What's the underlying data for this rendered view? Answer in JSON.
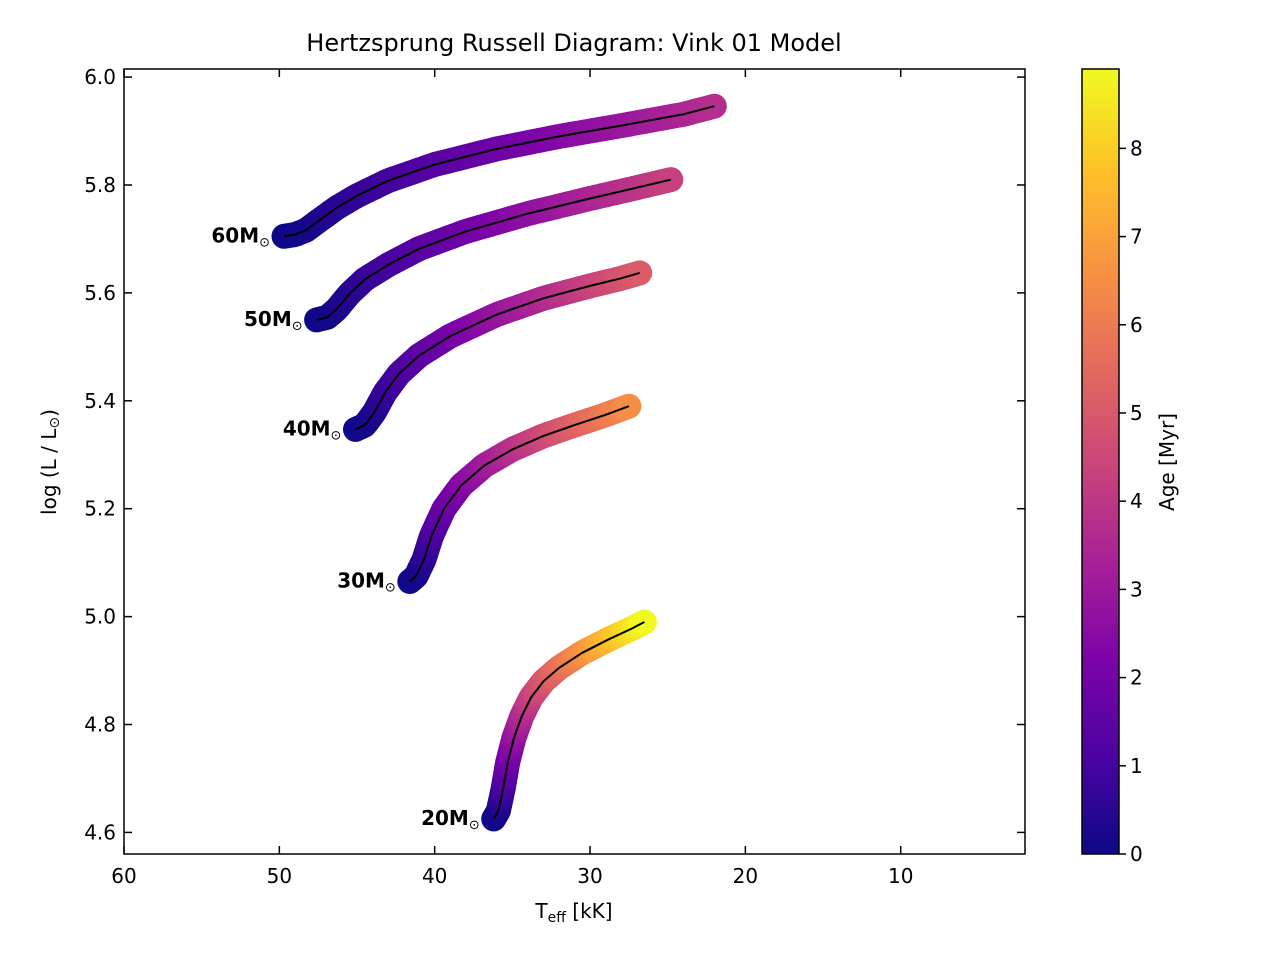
{
  "chart_data": {
    "type": "line",
    "title": "Hertzsprung Russell Diagram: Vink 01 Model",
    "xlabel": {
      "main": "T",
      "sub": "eff",
      "unit": " [kK]"
    },
    "ylabel": {
      "prefix": "log (L / L",
      "sun": "⊙",
      "suffix": ")"
    },
    "xlim": [
      60,
      2
    ],
    "ylim": [
      4.56,
      6.015
    ],
    "xticks": [
      60,
      50,
      40,
      30,
      20,
      10
    ],
    "xtick_labels": [
      "60",
      "50",
      "40",
      "30",
      "20",
      "10"
    ],
    "yticks": [
      4.6,
      4.8,
      5.0,
      5.2,
      5.4,
      5.6,
      5.8,
      6.0
    ],
    "ytick_labels": [
      "4.6",
      "4.8",
      "5.0",
      "5.2",
      "5.4",
      "5.6",
      "5.8",
      "6.0"
    ],
    "colorbar": {
      "label": "Age [Myr]",
      "range": [
        0,
        8.9
      ],
      "ticks": [
        0,
        1,
        2,
        3,
        4,
        5,
        6,
        7,
        8
      ],
      "tick_labels": [
        "0",
        "1",
        "2",
        "3",
        "4",
        "5",
        "6",
        "7",
        "8"
      ],
      "colormap": "plasma"
    },
    "series": [
      {
        "name": "60M",
        "label": "60M",
        "sun": "⊙",
        "age_end": 3.7,
        "x": [
          49.7,
          49.0,
          48.3,
          47.4,
          46.3,
          45.0,
          43.0,
          40.0,
          36.0,
          32.0,
          28.0,
          24.0,
          22.0
        ],
        "y": [
          5.705,
          5.708,
          5.716,
          5.735,
          5.758,
          5.78,
          5.808,
          5.838,
          5.867,
          5.89,
          5.91,
          5.931,
          5.946
        ]
      },
      {
        "name": "50M",
        "label": "50M",
        "sun": "⊙",
        "age_end": 4.3,
        "x": [
          47.6,
          46.9,
          46.3,
          45.5,
          44.5,
          43.0,
          41.0,
          38.0,
          34.0,
          30.0,
          27.0,
          24.8
        ],
        "y": [
          5.55,
          5.555,
          5.57,
          5.598,
          5.625,
          5.652,
          5.682,
          5.714,
          5.747,
          5.775,
          5.795,
          5.81
        ]
      },
      {
        "name": "40M",
        "label": "40M",
        "sun": "⊙",
        "age_end": 5.1,
        "x": [
          45.1,
          44.5,
          43.9,
          43.2,
          42.3,
          41.0,
          39.0,
          36.0,
          33.0,
          30.0,
          28.0,
          26.8
        ],
        "y": [
          5.347,
          5.355,
          5.378,
          5.415,
          5.45,
          5.484,
          5.52,
          5.56,
          5.59,
          5.613,
          5.627,
          5.637
        ]
      },
      {
        "name": "30M",
        "label": "30M",
        "sun": "⊙",
        "age_end": 6.5,
        "x": [
          41.6,
          41.2,
          40.7,
          40.2,
          39.4,
          38.3,
          36.8,
          35.0,
          33.0,
          31.0,
          29.0,
          27.5
        ],
        "y": [
          5.065,
          5.075,
          5.105,
          5.15,
          5.2,
          5.243,
          5.28,
          5.31,
          5.335,
          5.355,
          5.374,
          5.39
        ]
      },
      {
        "name": "20M",
        "label": "20M",
        "sun": "⊙",
        "age_end": 8.9,
        "x": [
          36.2,
          35.9,
          35.6,
          35.3,
          34.9,
          34.4,
          33.8,
          33.0,
          32.0,
          30.5,
          28.8,
          27.3,
          26.5
        ],
        "y": [
          4.625,
          4.64,
          4.68,
          4.73,
          4.775,
          4.815,
          4.85,
          4.88,
          4.905,
          4.933,
          4.958,
          4.978,
          4.99
        ]
      }
    ]
  }
}
